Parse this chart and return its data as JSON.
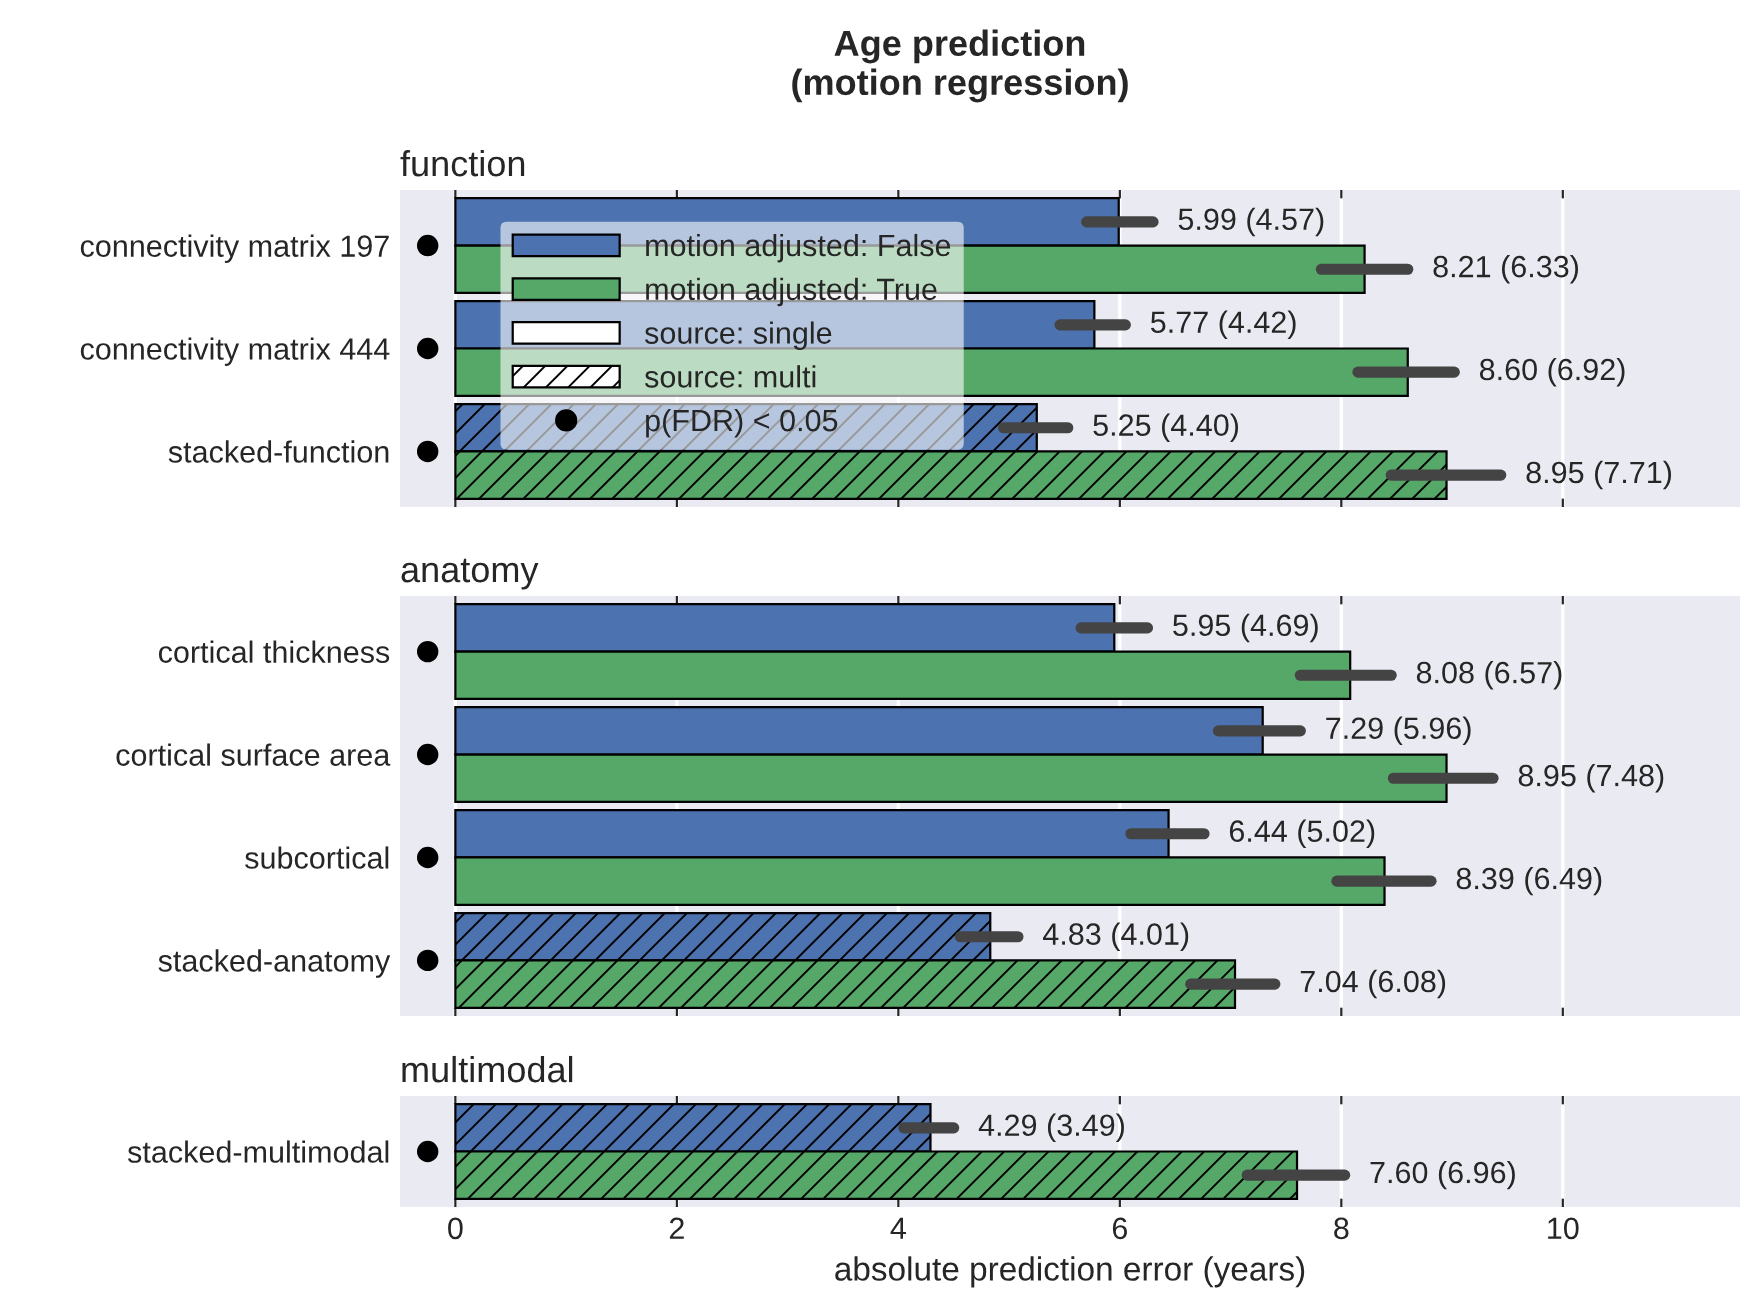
{
  "chart_data": [
    {
      "type": "bar",
      "orientation": "horizontal",
      "title": "Age prediction\n(motion regression)",
      "subtitle": "function",
      "categories": [
        "connectivity matrix 197",
        "connectivity matrix 444",
        "stacked-function"
      ],
      "xlim": [
        -0.5,
        11.6
      ],
      "xticks": [
        0,
        2,
        4,
        6,
        8,
        10
      ],
      "tick_labels": "y",
      "grid": "x",
      "legend": "top left",
      "series": [
        {
          "name": "motion adjusted: False",
          "color": "#4c72b0",
          "values": [
            5.99,
            5.77,
            null
          ],
          "errors": [
            [
              5.7,
              6.3
            ],
            [
              5.46,
              6.05
            ],
            null
          ],
          "value_labels": [
            "5.99 (4.57)",
            "5.77 (4.42)",
            null
          ]
        },
        {
          "name": "motion adjusted: True",
          "color": "#55a868",
          "values": [
            8.21,
            8.6,
            null
          ],
          "errors": [
            [
              7.82,
              8.6
            ],
            [
              8.15,
              9.02
            ],
            null
          ],
          "value_labels": [
            "8.21 (6.33)",
            "8.60 (6.92)",
            null
          ]
        },
        {
          "name": "source: single",
          "color": "#ffffff",
          "values": [
            null,
            null,
            null
          ]
        },
        {
          "name": "source: multi",
          "color": "#ffffff",
          "values": [
            null,
            null,
            null
          ]
        },
        {
          "color": "#4c72b0",
          "values": [
            null,
            null,
            5.25
          ],
          "errors": [
            null,
            null,
            [
              4.95,
              5.53
            ]
          ],
          "value_labels": [
            null,
            null,
            "5.25 (4.40)"
          ]
        },
        {
          "color": "#55a868",
          "values": [
            null,
            null,
            8.95
          ],
          "errors": [
            null,
            null,
            [
              8.45,
              9.44
            ]
          ],
          "value_labels": [
            null,
            null,
            "8.95 (7.71)"
          ]
        },
        {
          "name": "p(FDR) < 0.05",
          "type": "scatter",
          "marker": "circle",
          "color": "#000000",
          "values": [
            -0.25,
            -0.25,
            -0.25
          ]
        }
      ]
    },
    {
      "type": "bar",
      "orientation": "horizontal",
      "subtitle": "anatomy",
      "categories": [
        "cortical thickness",
        "cortical surface area",
        "subcortical",
        "stacked-anatomy"
      ],
      "xlim": [
        -0.5,
        11.6
      ],
      "xticks": [
        0,
        2,
        4,
        6,
        8,
        10
      ],
      "tick_labels": "y",
      "grid": "x",
      "series": [
        {
          "color": "#4c72b0",
          "values": [
            5.95,
            7.29,
            6.44,
            null
          ],
          "errors": [
            [
              5.65,
              6.25
            ],
            [
              6.89,
              7.63
            ],
            [
              6.1,
              6.76
            ],
            null
          ],
          "value_labels": [
            "5.95 (4.69)",
            "7.29 (5.96)",
            "6.44 (5.02)",
            null
          ]
        },
        {
          "color": "#55a868",
          "values": [
            8.08,
            8.95,
            8.39,
            null
          ],
          "errors": [
            [
              7.63,
              8.45
            ],
            [
              8.47,
              9.37
            ],
            [
              7.96,
              8.81
            ],
            null
          ],
          "value_labels": [
            "8.08 (6.57)",
            "8.95 (7.48)",
            "8.39 (6.49)",
            null
          ]
        },
        {
          "color": "#4c72b0",
          "values": [
            null,
            null,
            null,
            4.83
          ],
          "errors": [
            null,
            null,
            null,
            [
              4.56,
              5.08
            ]
          ],
          "value_labels": [
            null,
            null,
            null,
            "4.83 (4.01)"
          ]
        },
        {
          "color": "#55a868",
          "values": [
            null,
            null,
            null,
            7.04
          ],
          "errors": [
            null,
            null,
            null,
            [
              6.64,
              7.4
            ]
          ],
          "value_labels": [
            null,
            null,
            null,
            "7.04 (6.08)"
          ]
        },
        {
          "type": "scatter",
          "marker": "circle",
          "color": "#000000",
          "values": [
            -0.25,
            -0.25,
            -0.25,
            -0.25
          ]
        }
      ]
    },
    {
      "type": "bar",
      "orientation": "horizontal",
      "subtitle": "multimodal",
      "xlabel": "absolute prediction error (years)",
      "categories": [
        "stacked-multimodal"
      ],
      "xlim": [
        -0.5,
        11.6
      ],
      "xticks": [
        0,
        2,
        4,
        6,
        8,
        10
      ],
      "grid": "x",
      "series": [
        {
          "color": "#4c72b0",
          "values": [
            null
          ],
          "errors": [
            null
          ],
          "value_labels": [
            null
          ]
        },
        {
          "color": "#55a868",
          "values": [
            null
          ],
          "errors": [
            null
          ],
          "value_labels": [
            null
          ]
        },
        {
          "color": "#4c72b0",
          "values": [
            4.29
          ],
          "errors": [
            [
              4.05,
              4.5
            ]
          ],
          "value_labels": [
            "4.29 (3.49)"
          ]
        },
        {
          "color": "#55a868",
          "values": [
            7.6
          ],
          "errors": [
            [
              7.15,
              8.03
            ]
          ],
          "value_labels": [
            "7.60 (6.96)"
          ]
        },
        {
          "type": "scatter",
          "marker": "circle",
          "color": "#000000",
          "values": [
            -0.25
          ]
        }
      ]
    }
  ]
}
